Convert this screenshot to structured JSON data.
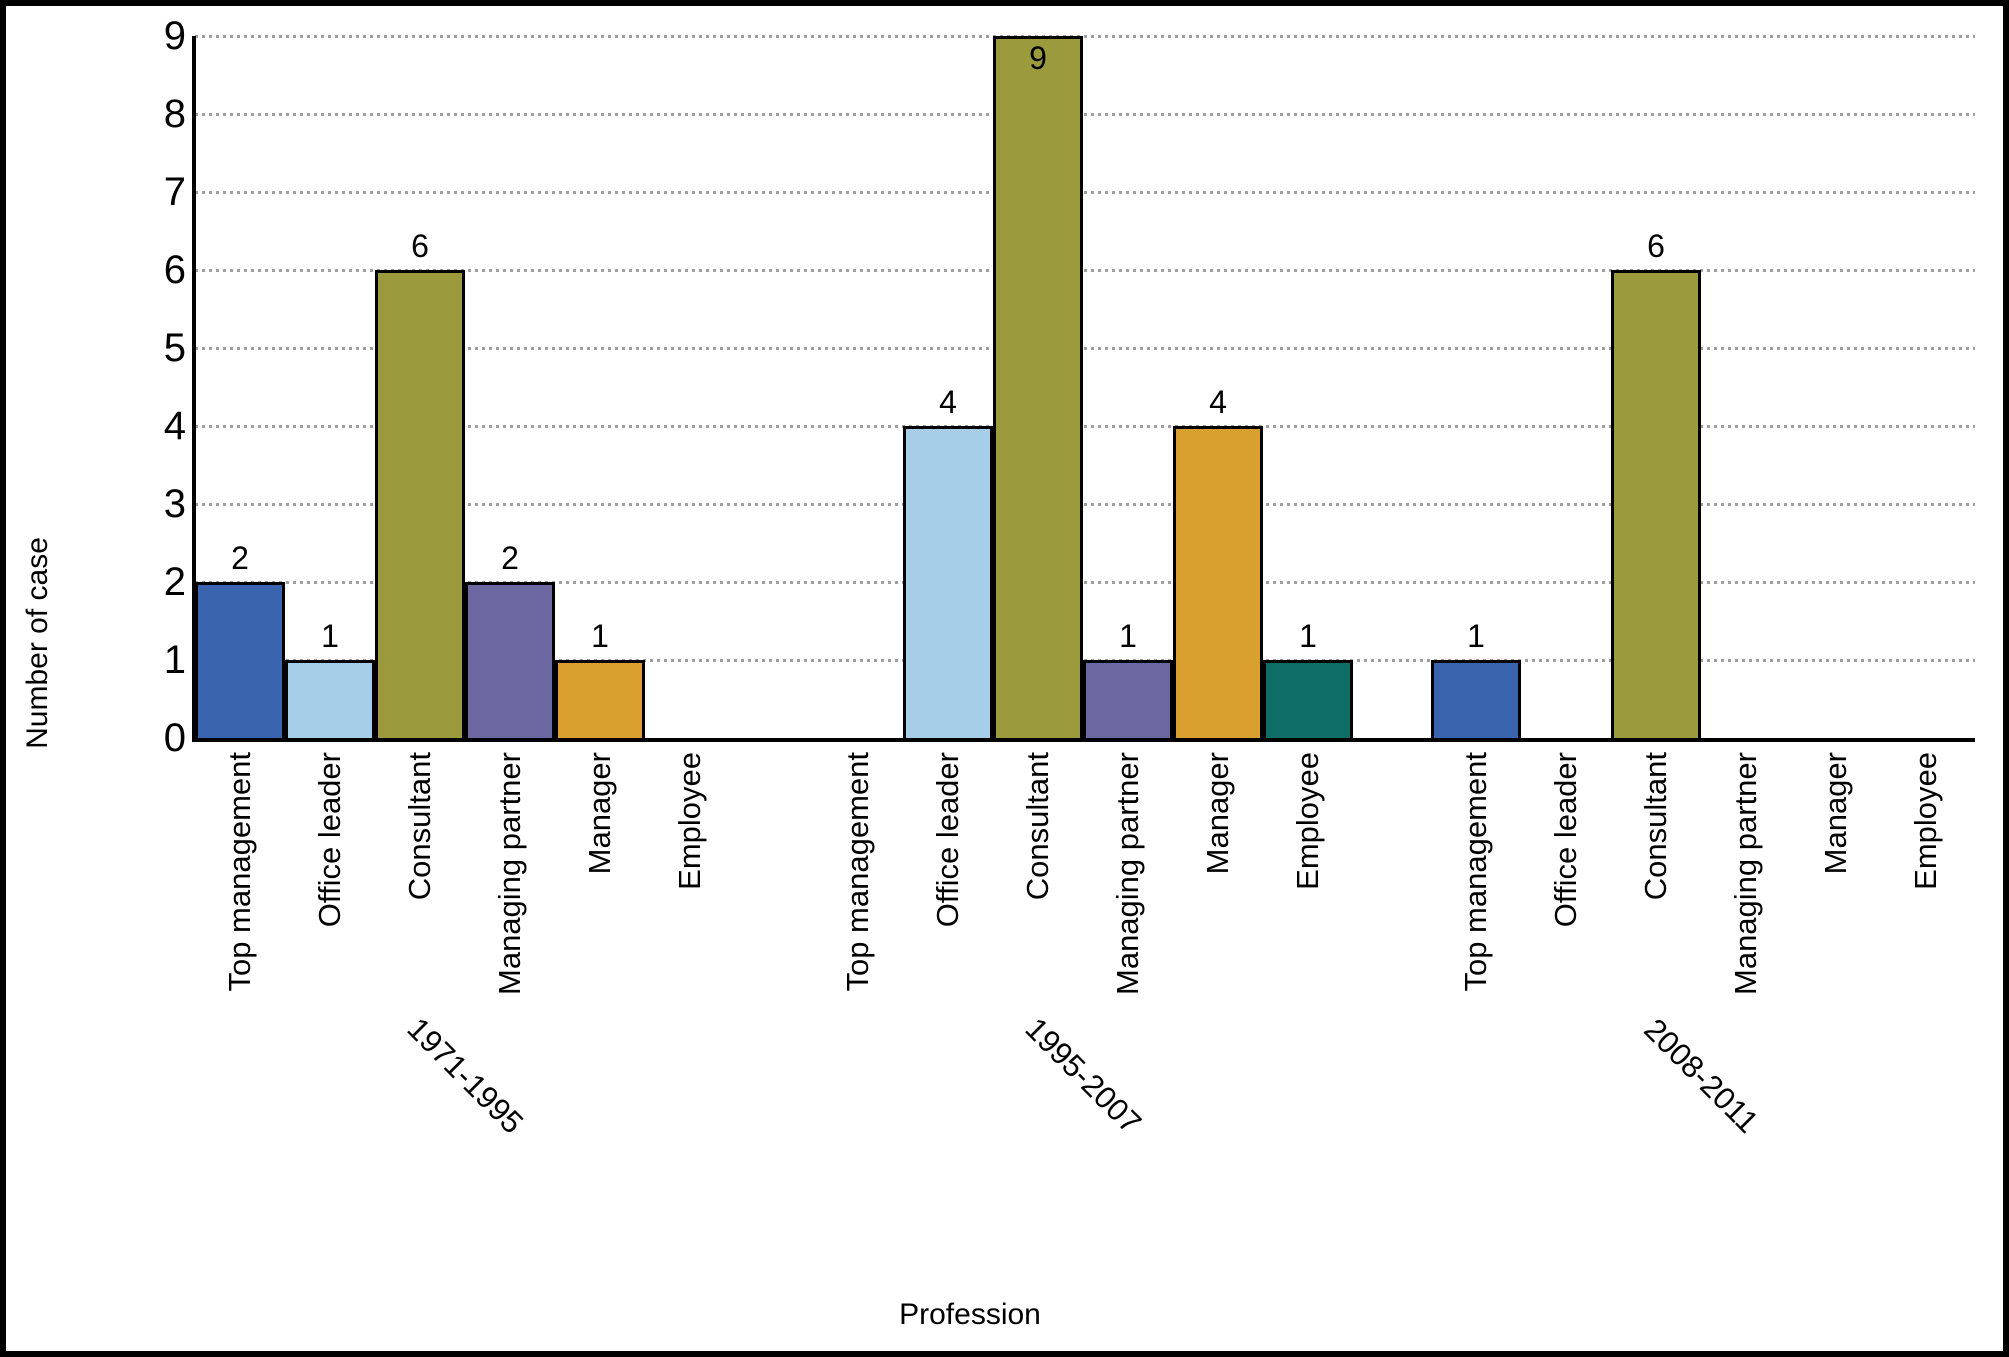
{
  "chart_data": {
    "type": "bar",
    "title": "",
    "xlabel": "Profession",
    "ylabel": "Number of case",
    "ylim": [
      0,
      9
    ],
    "yticks": [
      "0",
      "1",
      "2",
      "3",
      "4",
      "5",
      "6",
      "7",
      "8",
      "9"
    ],
    "grid": "horizontal-dotted",
    "grid_color": "#9f9f9f",
    "legend": "none",
    "bar_outline_color": "#000000",
    "value_labels": "shown above bars, inside bar when at axis max, hidden for zero",
    "categories": [
      "Top management",
      "Office leader",
      "Consultant",
      "Managing partner",
      "Manager",
      "Employee"
    ],
    "category_colors": [
      "#3A64AD",
      "#A7CEE9",
      "#9B9A3C",
      "#6C68A2",
      "#D9A02F",
      "#0E6E66"
    ],
    "groups": [
      {
        "label": "1971-1995",
        "values": [
          2,
          1,
          6,
          2,
          1,
          0
        ]
      },
      {
        "label": "1995-2007",
        "values": [
          0,
          4,
          9,
          1,
          4,
          1
        ]
      },
      {
        "label": "2008-2011",
        "values": [
          1,
          0,
          6,
          0,
          0,
          0
        ]
      }
    ]
  }
}
